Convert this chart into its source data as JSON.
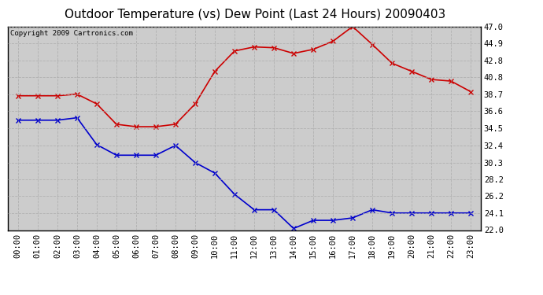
{
  "title": "Outdoor Temperature (vs) Dew Point (Last 24 Hours) 20090403",
  "copyright": "Copyright 2009 Cartronics.com",
  "hours": [
    "00:00",
    "01:00",
    "02:00",
    "03:00",
    "04:00",
    "05:00",
    "06:00",
    "07:00",
    "08:00",
    "09:00",
    "10:00",
    "11:00",
    "12:00",
    "13:00",
    "14:00",
    "15:00",
    "16:00",
    "17:00",
    "18:00",
    "19:00",
    "20:00",
    "21:00",
    "22:00",
    "23:00"
  ],
  "temp": [
    38.5,
    38.5,
    38.5,
    38.7,
    37.5,
    35.0,
    34.7,
    34.7,
    35.0,
    37.5,
    41.5,
    44.0,
    44.5,
    44.4,
    43.7,
    44.2,
    45.2,
    47.0,
    44.8,
    42.5,
    41.5,
    40.5,
    40.3,
    39.0
  ],
  "dew": [
    35.5,
    35.5,
    35.5,
    35.8,
    32.5,
    31.2,
    31.2,
    31.2,
    32.4,
    30.3,
    29.0,
    26.4,
    24.5,
    24.5,
    22.2,
    23.2,
    23.2,
    23.5,
    24.5,
    24.1,
    24.1,
    24.1,
    24.1,
    24.1
  ],
  "temp_color": "#cc0000",
  "dew_color": "#0000cc",
  "fig_bg_color": "#ffffff",
  "plot_bg": "#cccccc",
  "ylim": [
    22.0,
    47.0
  ],
  "yticks": [
    22.0,
    24.1,
    26.2,
    28.2,
    30.3,
    32.4,
    34.5,
    36.6,
    38.7,
    40.8,
    42.8,
    44.9,
    47.0
  ],
  "ytick_labels": [
    "22.0",
    "24.1",
    "26.2",
    "28.2",
    "30.3",
    "32.4",
    "34.5",
    "36.6",
    "38.7",
    "40.8",
    "42.8",
    "44.9",
    "47.0"
  ],
  "grid_color": "#aaaaaa",
  "marker": "x",
  "marker_size": 4,
  "line_width": 1.2,
  "title_fontsize": 11,
  "tick_fontsize": 7.5,
  "copyright_fontsize": 6.5
}
